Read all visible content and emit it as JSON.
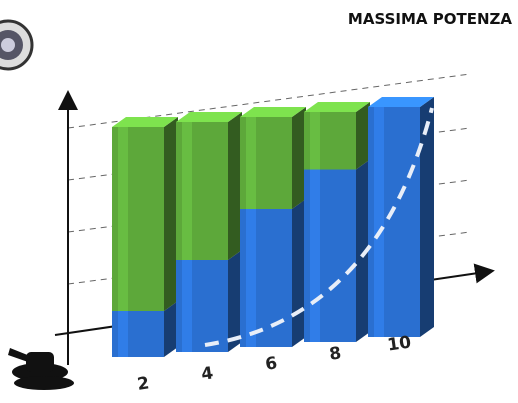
{
  "chart_data": {
    "type": "bar",
    "title": "MASSIMA POTENZA",
    "categories": [
      "2",
      "4",
      "6",
      "8",
      "10"
    ],
    "ylim": [
      0,
      100
    ],
    "series": [
      {
        "color": "#2a6fd0",
        "values": [
          20,
          40,
          60,
          75,
          100
        ]
      },
      {
        "color": "#5da83a",
        "values": [
          80,
          60,
          40,
          25,
          0
        ]
      }
    ]
  }
}
